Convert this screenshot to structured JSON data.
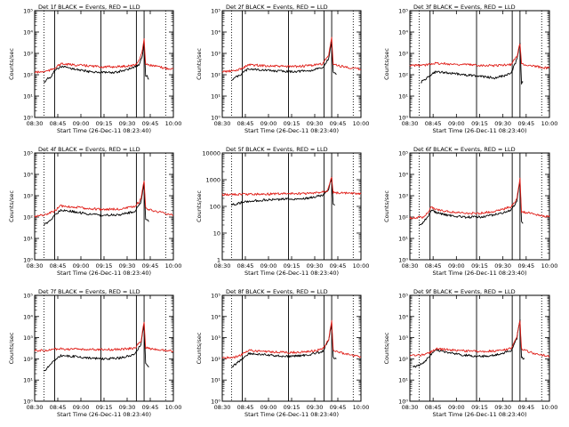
{
  "colors": {
    "events": "#000000",
    "lld": "#e0201a",
    "axis": "#000000",
    "background": "#ffffff"
  },
  "chart_data": [
    {
      "type": "line",
      "title": "Det 1f BLACK = Events, RED = LLD",
      "xlabel": "Start Time (26-Dec-11 08:23:40)",
      "ylabel": "Counts/sec",
      "yscale": "log",
      "ylim": [
        1,
        100000
      ],
      "xlim": [
        "08:30",
        "10:00"
      ],
      "xticks": [
        "08:30",
        "08:45",
        "09:00",
        "09:15",
        "09:30",
        "09:45",
        "10:00"
      ],
      "yticks": [
        "10⁰",
        "10¹",
        "10²",
        "10³",
        "10⁴",
        "10⁵"
      ],
      "vlines_dotted": [
        "08:36",
        "09:55"
      ],
      "vlines_solid": [
        "08:43",
        "09:13",
        "09:36",
        "09:41"
      ],
      "series": [
        {
          "key": "events",
          "x": [
            "08:36",
            "08:37",
            "08:38",
            "08:40",
            "08:42",
            "08:43",
            "08:47",
            "08:55",
            "09:05",
            "09:13",
            "09:20",
            "09:30",
            "09:38",
            "09:40",
            "09:41",
            "09:42",
            "09:43",
            "09:44"
          ],
          "y": [
            45,
            50,
            65,
            75,
            110,
            160,
            240,
            190,
            140,
            130,
            120,
            170,
            300,
            800,
            3200,
            90,
            95,
            60
          ]
        },
        {
          "key": "lld",
          "x": [
            "08:30",
            "08:35",
            "08:40",
            "08:43",
            "08:47",
            "08:55",
            "09:05",
            "09:15",
            "09:25",
            "09:35",
            "09:38",
            "09:40",
            "09:41",
            "09:42",
            "09:45",
            "09:55",
            "10:00"
          ],
          "y": [
            130,
            135,
            160,
            210,
            320,
            290,
            260,
            230,
            240,
            280,
            500,
            1400,
            5000,
            320,
            280,
            200,
            190
          ]
        }
      ]
    },
    {
      "type": "line",
      "title": "Det 2f BLACK = Events, RED = LLD",
      "xlabel": "Start Time (26-Dec-11 08:23:40)",
      "ylabel": "Counts/sec",
      "yscale": "log",
      "ylim": [
        1,
        100000
      ],
      "xlim": [
        "08:30",
        "10:00"
      ],
      "xticks": [
        "08:30",
        "08:45",
        "09:00",
        "09:15",
        "09:30",
        "09:45",
        "10:00"
      ],
      "yticks": [
        "10⁰",
        "10¹",
        "10²",
        "10³",
        "10⁴",
        "10⁵"
      ],
      "vlines_dotted": [
        "08:36",
        "09:55"
      ],
      "vlines_solid": [
        "08:43",
        "09:13",
        "09:36",
        "09:41"
      ],
      "series": [
        {
          "key": "events",
          "x": [
            "08:36",
            "08:38",
            "08:41",
            "08:43",
            "08:47",
            "08:55",
            "09:05",
            "09:13",
            "09:25",
            "09:35",
            "09:39",
            "09:41",
            "09:42",
            "09:44"
          ],
          "y": [
            60,
            70,
            90,
            120,
            190,
            170,
            150,
            140,
            150,
            200,
            600,
            3500,
            120,
            100
          ]
        },
        {
          "key": "lld",
          "x": [
            "08:30",
            "08:38",
            "08:43",
            "08:47",
            "08:55",
            "09:05",
            "09:15",
            "09:25",
            "09:35",
            "09:39",
            "09:41",
            "09:42",
            "09:50",
            "10:00"
          ],
          "y": [
            140,
            150,
            200,
            290,
            270,
            250,
            240,
            260,
            320,
            800,
            5500,
            300,
            230,
            180
          ]
        }
      ]
    },
    {
      "type": "line",
      "title": "Det 3f BLACK = Events, RED = LLD",
      "xlabel": "Start Time (26-Dec-11 08:23:40)",
      "ylabel": "Counts/sec",
      "yscale": "log",
      "ylim": [
        1,
        100000
      ],
      "xlim": [
        "08:30",
        "10:00"
      ],
      "xticks": [
        "08:30",
        "08:45",
        "09:00",
        "09:15",
        "09:30",
        "09:45",
        "10:00"
      ],
      "yticks": [
        "10⁰",
        "10¹",
        "10²",
        "10³",
        "10⁴",
        "10⁵"
      ],
      "vlines_dotted": [
        "08:36",
        "09:55"
      ],
      "vlines_solid": [
        "08:43",
        "09:13",
        "09:36",
        "09:41"
      ],
      "series": [
        {
          "key": "events",
          "x": [
            "08:37",
            "08:40",
            "08:43",
            "08:47",
            "08:55",
            "09:05",
            "09:15",
            "09:25",
            "09:35",
            "09:39",
            "09:41",
            "09:42",
            "09:43"
          ],
          "y": [
            45,
            60,
            90,
            140,
            120,
            100,
            85,
            70,
            110,
            500,
            3000,
            40,
            45
          ]
        },
        {
          "key": "lld",
          "x": [
            "08:30",
            "08:40",
            "08:45",
            "08:55",
            "09:05",
            "09:15",
            "09:25",
            "09:35",
            "09:39",
            "09:41",
            "09:42",
            "09:50",
            "10:00"
          ],
          "y": [
            270,
            280,
            350,
            320,
            300,
            280,
            270,
            300,
            700,
            3000,
            320,
            250,
            200
          ]
        }
      ]
    },
    {
      "type": "line",
      "title": "Det 4f BLACK = Events, RED = LLD",
      "xlabel": "Start Time (26-Dec-11 08:23:40)",
      "ylabel": "Counts/sec",
      "yscale": "log",
      "ylim": [
        1,
        100000
      ],
      "xlim": [
        "08:30",
        "10:00"
      ],
      "xticks": [
        "08:30",
        "08:45",
        "09:00",
        "09:15",
        "09:30",
        "09:45",
        "10:00"
      ],
      "yticks": [
        "10⁰",
        "10¹",
        "10²",
        "10³",
        "10⁴",
        "10⁵"
      ],
      "vlines_dotted": [
        "08:36",
        "09:55"
      ],
      "vlines_solid": [
        "08:43",
        "09:13",
        "09:36",
        "09:41"
      ],
      "series": [
        {
          "key": "events",
          "x": [
            "08:36",
            "08:38",
            "08:41",
            "08:43",
            "08:47",
            "08:55",
            "09:05",
            "09:13",
            "09:25",
            "09:35",
            "09:39",
            "09:41",
            "09:42",
            "09:44"
          ],
          "y": [
            40,
            55,
            80,
            120,
            220,
            180,
            140,
            120,
            130,
            180,
            500,
            4500,
            80,
            60
          ]
        },
        {
          "key": "lld",
          "x": [
            "08:30",
            "08:38",
            "08:43",
            "08:47",
            "08:55",
            "09:05",
            "09:15",
            "09:25",
            "09:35",
            "09:39",
            "09:41",
            "09:42",
            "09:50",
            "10:00"
          ],
          "y": [
            110,
            130,
            200,
            330,
            300,
            250,
            230,
            240,
            300,
            700,
            5500,
            250,
            180,
            120
          ]
        }
      ]
    },
    {
      "type": "line",
      "title": "Det 5f BLACK = Events, RED = LLD",
      "xlabel": "Start Time (26-Dec-11 08:23:40)",
      "ylabel": "Counts/sec",
      "yscale": "log",
      "ylim": [
        1,
        10000
      ],
      "xlim": [
        "08:30",
        "10:00"
      ],
      "xticks": [
        "08:30",
        "08:45",
        "09:00",
        "09:15",
        "09:30",
        "09:45",
        "10:00"
      ],
      "yticks": [
        "1",
        "10",
        "100",
        "1000",
        "10000"
      ],
      "vlines_dotted": [
        "08:36",
        "09:55"
      ],
      "vlines_solid": [
        "08:43",
        "09:13",
        "09:36",
        "09:41"
      ],
      "series": [
        {
          "key": "events",
          "x": [
            "08:36",
            "08:40",
            "08:45",
            "08:55",
            "09:05",
            "09:15",
            "09:25",
            "09:35",
            "09:39",
            "09:41",
            "09:42",
            "09:43"
          ],
          "y": [
            110,
            130,
            150,
            170,
            180,
            190,
            200,
            260,
            450,
            1200,
            120,
            110
          ]
        },
        {
          "key": "lld",
          "x": [
            "08:30",
            "08:40",
            "08:50",
            "09:00",
            "09:10",
            "09:20",
            "09:30",
            "09:38",
            "09:41",
            "09:42",
            "09:50",
            "10:00"
          ],
          "y": [
            280,
            280,
            290,
            290,
            300,
            300,
            310,
            380,
            1300,
            330,
            310,
            290
          ]
        }
      ]
    },
    {
      "type": "line",
      "title": "Det 6f BLACK = Events, RED = LLD",
      "xlabel": "Start Time (26-Dec-11 08:23:40)",
      "ylabel": "Counts/sec",
      "yscale": "log",
      "ylim": [
        1,
        100000
      ],
      "xlim": [
        "08:30",
        "10:00"
      ],
      "xticks": [
        "08:30",
        "08:45",
        "09:00",
        "09:15",
        "09:30",
        "09:45",
        "10:00"
      ],
      "yticks": [
        "10⁰",
        "10¹",
        "10²",
        "10³",
        "10⁴",
        "10⁵"
      ],
      "vlines_dotted": [
        "08:36",
        "09:55"
      ],
      "vlines_solid": [
        "08:43",
        "09:13",
        "09:36",
        "09:41"
      ],
      "series": [
        {
          "key": "events",
          "x": [
            "08:36",
            "08:39",
            "08:42",
            "08:44",
            "08:47",
            "08:55",
            "09:05",
            "09:15",
            "09:25",
            "09:35",
            "09:39",
            "09:41",
            "09:42",
            "09:43"
          ],
          "y": [
            40,
            60,
            120,
            220,
            160,
            120,
            100,
            100,
            130,
            200,
            500,
            5000,
            70,
            50
          ]
        },
        {
          "key": "lld",
          "x": [
            "08:30",
            "08:39",
            "08:42",
            "08:44",
            "08:47",
            "08:55",
            "09:05",
            "09:15",
            "09:25",
            "09:35",
            "09:39",
            "09:41",
            "09:42",
            "09:50",
            "10:00"
          ],
          "y": [
            90,
            100,
            180,
            300,
            220,
            180,
            150,
            150,
            190,
            300,
            700,
            6500,
            180,
            140,
            100
          ]
        }
      ]
    },
    {
      "type": "line",
      "title": "Det 7f BLACK = Events, RED = LLD",
      "xlabel": "Start Time (26-Dec-11 08:23:40)",
      "ylabel": "Counts/sec",
      "yscale": "log",
      "ylim": [
        1,
        100000
      ],
      "xlim": [
        "08:30",
        "10:00"
      ],
      "xticks": [
        "08:30",
        "08:45",
        "09:00",
        "09:15",
        "09:30",
        "09:45",
        "10:00"
      ],
      "yticks": [
        "10⁰",
        "10¹",
        "10²",
        "10³",
        "10⁴",
        "10⁵"
      ],
      "vlines_dotted": [
        "08:36",
        "09:55"
      ],
      "vlines_solid": [
        "08:43",
        "09:13",
        "09:36",
        "09:41"
      ],
      "series": [
        {
          "key": "events",
          "x": [
            "08:36",
            "08:38",
            "08:41",
            "08:43",
            "08:47",
            "08:55",
            "09:05",
            "09:15",
            "09:25",
            "09:35",
            "09:39",
            "09:41",
            "09:42",
            "09:44"
          ],
          "y": [
            25,
            35,
            60,
            90,
            140,
            130,
            110,
            100,
            110,
            160,
            500,
            5000,
            60,
            40
          ]
        },
        {
          "key": "lld",
          "x": [
            "08:30",
            "08:40",
            "08:45",
            "08:55",
            "09:05",
            "09:15",
            "09:25",
            "09:35",
            "09:39",
            "09:41",
            "09:42",
            "09:50",
            "10:00"
          ],
          "y": [
            240,
            260,
            300,
            290,
            280,
            270,
            280,
            320,
            700,
            6000,
            330,
            280,
            230
          ]
        }
      ]
    },
    {
      "type": "line",
      "title": "Det 8f BLACK = Events, RED = LLD",
      "xlabel": "Start Time (26-Dec-11 08:23:40)",
      "ylabel": "Counts/sec",
      "yscale": "log",
      "ylim": [
        1,
        100000
      ],
      "xlim": [
        "08:30",
        "10:00"
      ],
      "xticks": [
        "08:30",
        "08:45",
        "09:00",
        "09:15",
        "09:30",
        "09:45",
        "10:00"
      ],
      "yticks": [
        "10⁰",
        "10¹",
        "10²",
        "10³",
        "10⁴",
        "10⁵"
      ],
      "vlines_dotted": [
        "08:36",
        "09:55"
      ],
      "vlines_solid": [
        "08:43",
        "09:13",
        "09:36",
        "09:41"
      ],
      "series": [
        {
          "key": "events",
          "x": [
            "08:36",
            "08:39",
            "08:43",
            "08:47",
            "08:55",
            "09:05",
            "09:13",
            "09:25",
            "09:35",
            "09:39",
            "09:41",
            "09:42",
            "09:44"
          ],
          "y": [
            40,
            60,
            100,
            180,
            160,
            140,
            130,
            150,
            220,
            700,
            5000,
            120,
            100
          ]
        },
        {
          "key": "lld",
          "x": [
            "08:30",
            "08:38",
            "08:43",
            "08:47",
            "08:55",
            "09:05",
            "09:15",
            "09:25",
            "09:35",
            "09:39",
            "09:41",
            "09:42",
            "09:50",
            "10:00"
          ],
          "y": [
            110,
            120,
            160,
            250,
            230,
            210,
            200,
            220,
            280,
            800,
            6000,
            250,
            170,
            120
          ]
        }
      ]
    },
    {
      "type": "line",
      "title": "Det 9f BLACK = Events, RED = LLD",
      "xlabel": "Start Time (26-Dec-11 08:23:40)",
      "ylabel": "Counts/sec",
      "yscale": "log",
      "ylim": [
        1,
        100000
      ],
      "xlim": [
        "08:30",
        "10:00"
      ],
      "xticks": [
        "08:30",
        "08:45",
        "09:00",
        "09:15",
        "09:30",
        "09:45",
        "10:00"
      ],
      "yticks": [
        "10⁰",
        "10¹",
        "10²",
        "10³",
        "10⁴",
        "10⁵"
      ],
      "vlines_dotted": [
        "08:36",
        "09:55"
      ],
      "vlines_solid": [
        "08:43",
        "09:13",
        "09:36",
        "09:41"
      ],
      "series": [
        {
          "key": "events",
          "x": [
            "08:32",
            "08:36",
            "08:40",
            "08:43",
            "08:47",
            "08:55",
            "09:05",
            "09:15",
            "09:25",
            "09:35",
            "09:39",
            "09:41",
            "09:42",
            "09:44"
          ],
          "y": [
            40,
            50,
            80,
            150,
            260,
            200,
            150,
            130,
            150,
            230,
            900,
            7000,
            110,
            100
          ]
        },
        {
          "key": "lld",
          "x": [
            "08:30",
            "08:38",
            "08:43",
            "08:47",
            "08:55",
            "09:05",
            "09:15",
            "09:25",
            "09:35",
            "09:39",
            "09:41",
            "09:42",
            "09:50",
            "10:00"
          ],
          "y": [
            140,
            150,
            200,
            300,
            270,
            240,
            220,
            240,
            300,
            1000,
            7000,
            280,
            180,
            130
          ]
        }
      ]
    }
  ]
}
